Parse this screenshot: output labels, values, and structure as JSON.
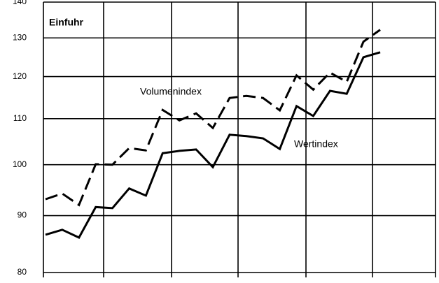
{
  "chart_data": {
    "type": "line",
    "title": "Einfuhr",
    "categories": [
      null,
      null,
      null,
      null,
      null,
      null,
      null,
      null,
      null,
      null,
      null,
      null,
      null,
      null,
      null,
      null,
      null,
      null,
      null,
      null,
      null
    ],
    "series": [
      {
        "name": "Volumenindex",
        "color": "#000000",
        "dash": true,
        "values": [
          93.1,
          94.2,
          92.0,
          100.1,
          100.0,
          103.5,
          103.0,
          112.0,
          109.6,
          111.2,
          107.9,
          114.8,
          115.3,
          114.8,
          111.9,
          120.3,
          116.8,
          121.0,
          118.7,
          129.0,
          132.2
        ]
      },
      {
        "name": "Wertindex",
        "color": "#000000",
        "dash": false,
        "values": [
          86.5,
          87.4,
          86.0,
          91.6,
          91.4,
          95.2,
          93.8,
          102.4,
          102.9,
          103.2,
          99.5,
          106.4,
          106.1,
          105.6,
          103.3,
          112.9,
          110.6,
          116.5,
          115.8,
          124.9,
          126.2
        ]
      }
    ],
    "ylim": [
      80,
      140
    ],
    "yticks": [
      80,
      90,
      100,
      110,
      120,
      130,
      140
    ],
    "log": true,
    "grid": true
  }
}
